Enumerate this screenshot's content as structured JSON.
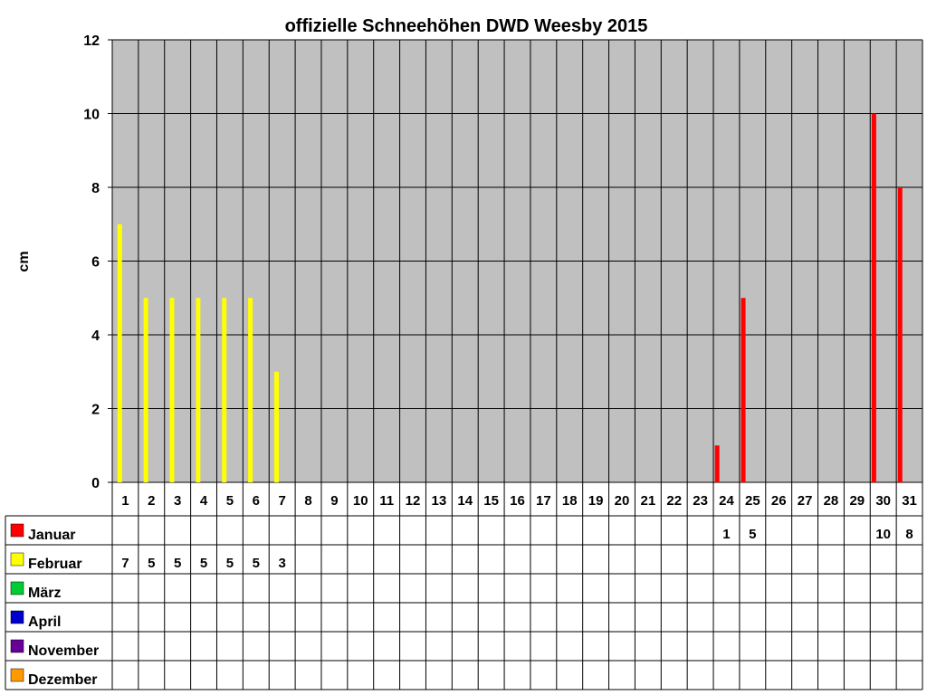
{
  "chart_data": {
    "type": "bar",
    "title": "offizielle Schneehöhen DWD Weesby 2015",
    "ylabel": "cm",
    "ylim": [
      0,
      12
    ],
    "yticks": [
      0,
      2,
      4,
      6,
      8,
      10,
      12
    ],
    "categories": [
      "1",
      "2",
      "3",
      "4",
      "5",
      "6",
      "7",
      "8",
      "9",
      "10",
      "11",
      "12",
      "13",
      "14",
      "15",
      "16",
      "17",
      "18",
      "19",
      "20",
      "21",
      "22",
      "23",
      "24",
      "25",
      "26",
      "27",
      "28",
      "29",
      "30",
      "31"
    ],
    "grid": true,
    "legend_placement": "bottom-left data table",
    "plot_background": "#c0c0c0",
    "series": [
      {
        "name": "Januar",
        "color": "#ff0000",
        "values": [
          null,
          null,
          null,
          null,
          null,
          null,
          null,
          null,
          null,
          null,
          null,
          null,
          null,
          null,
          null,
          null,
          null,
          null,
          null,
          null,
          null,
          null,
          null,
          1,
          5,
          null,
          null,
          null,
          null,
          10,
          8
        ]
      },
      {
        "name": "Februar",
        "color": "#ffff00",
        "values": [
          7,
          5,
          5,
          5,
          5,
          5,
          3,
          null,
          null,
          null,
          null,
          null,
          null,
          null,
          null,
          null,
          null,
          null,
          null,
          null,
          null,
          null,
          null,
          null,
          null,
          null,
          null,
          null,
          null,
          null,
          null
        ]
      },
      {
        "name": "März",
        "color": "#00cc33",
        "values": [
          null,
          null,
          null,
          null,
          null,
          null,
          null,
          null,
          null,
          null,
          null,
          null,
          null,
          null,
          null,
          null,
          null,
          null,
          null,
          null,
          null,
          null,
          null,
          null,
          null,
          null,
          null,
          null,
          null,
          null,
          null
        ]
      },
      {
        "name": "April",
        "color": "#0000cc",
        "values": [
          null,
          null,
          null,
          null,
          null,
          null,
          null,
          null,
          null,
          null,
          null,
          null,
          null,
          null,
          null,
          null,
          null,
          null,
          null,
          null,
          null,
          null,
          null,
          null,
          null,
          null,
          null,
          null,
          null,
          null,
          null
        ]
      },
      {
        "name": "November",
        "color": "#660099",
        "values": [
          null,
          null,
          null,
          null,
          null,
          null,
          null,
          null,
          null,
          null,
          null,
          null,
          null,
          null,
          null,
          null,
          null,
          null,
          null,
          null,
          null,
          null,
          null,
          null,
          null,
          null,
          null,
          null,
          null,
          null,
          null
        ]
      },
      {
        "name": "Dezember",
        "color": "#ff9900",
        "values": [
          null,
          null,
          null,
          null,
          null,
          null,
          null,
          null,
          null,
          null,
          null,
          null,
          null,
          null,
          null,
          null,
          null,
          null,
          null,
          null,
          null,
          null,
          null,
          null,
          null,
          null,
          null,
          null,
          null,
          null,
          null
        ]
      }
    ]
  }
}
